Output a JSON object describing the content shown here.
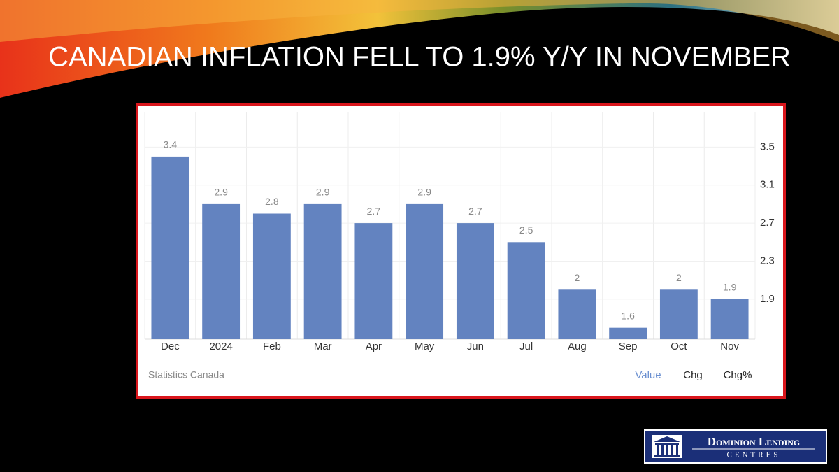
{
  "title": "CANADIAN INFLATION FELL TO 1.9% Y/Y IN NOVEMBER",
  "chart_data": {
    "type": "bar",
    "categories": [
      "Dec",
      "2024",
      "Feb",
      "Mar",
      "Apr",
      "May",
      "Jun",
      "Jul",
      "Aug",
      "Sep",
      "Oct",
      "Nov"
    ],
    "values": [
      3.4,
      2.9,
      2.8,
      2.9,
      2.7,
      2.9,
      2.7,
      2.5,
      2,
      1.6,
      2,
      1.9
    ],
    "color": "#6383c0",
    "ylim": [
      1.48,
      3.87
    ],
    "yticks": [
      1.9,
      2.3,
      2.7,
      3.1,
      3.5
    ],
    "grid": true,
    "source": "Statistics Canada"
  },
  "tabs": [
    "Value",
    "Chg",
    "Chg%"
  ],
  "logo": {
    "name": "Dominion Lending",
    "sub": "Centres"
  }
}
